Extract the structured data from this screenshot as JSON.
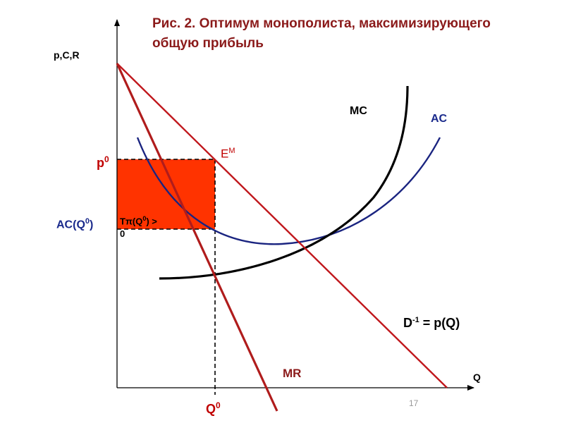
{
  "title_line1": "Рис. 2. Оптимум монополиста, максимизирующего",
  "title_line2": "общую прибыль",
  "y_axis_label": "p,C,R",
  "x_axis_label": "Q",
  "curves": {
    "mc": "MC",
    "ac": "AC",
    "demand": "D-1 = p(Q)",
    "mr": "MR"
  },
  "equilibrium_label": "E",
  "equilibrium_sup": "M",
  "price_label": "p",
  "price_sup": "0",
  "ac_label": "AC(Q",
  "ac_sup": "0",
  "ac_label_end": ")",
  "quantity_label": "Q",
  "quantity_sup": "0",
  "profit_area_label_pre": "Tπ(Q",
  "profit_area_sup": "0",
  "profit_area_label_post": ") >",
  "profit_area_label_line2": "0",
  "page_number": "17",
  "colors": {
    "demand": "#c0171c",
    "mr": "#b01c1c",
    "mc": "#000000",
    "ac": "#1a2480",
    "profit_fill": "#ff3300",
    "title": "#8b1a1a"
  }
}
